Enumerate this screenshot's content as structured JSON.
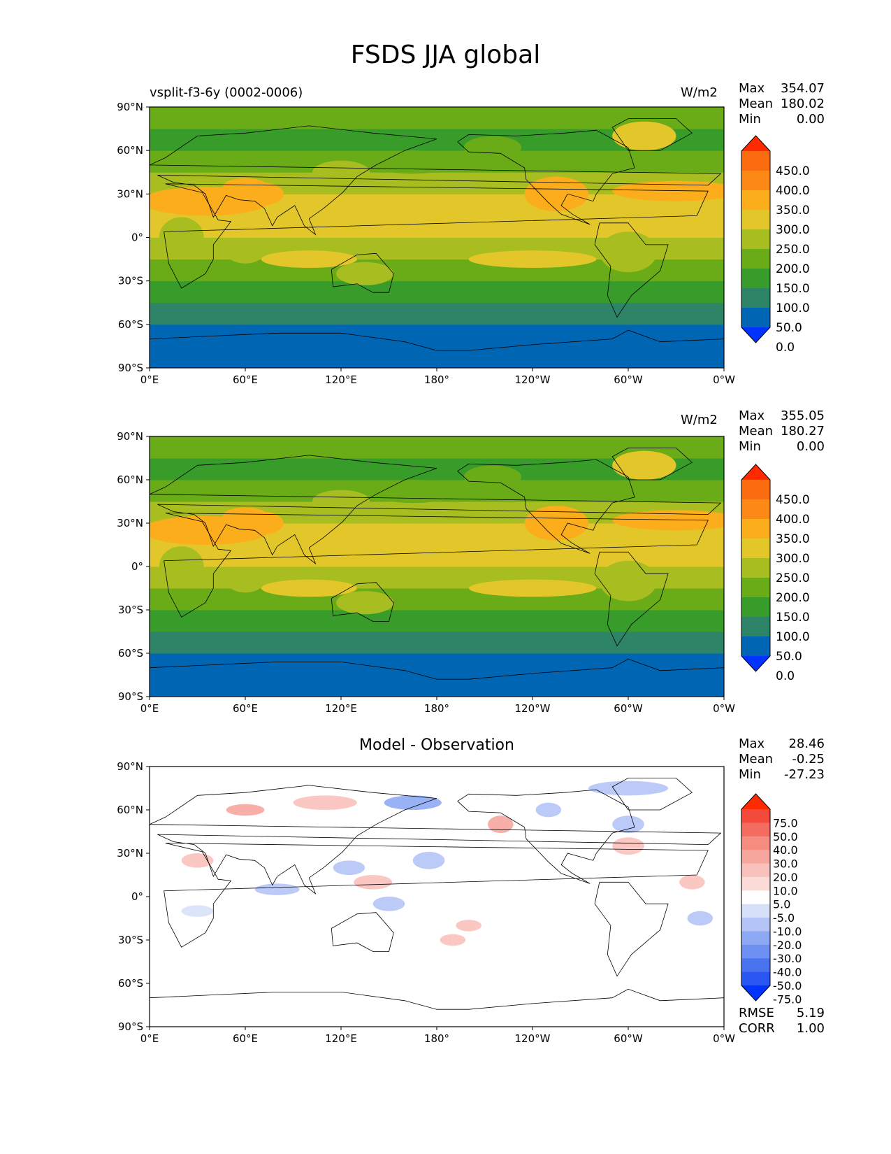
{
  "figure_title": "FSDS JJA global",
  "colors": {
    "levels_fill": [
      "#0033ff",
      "#0066b3",
      "#2e8466",
      "#389c2a",
      "#6aac18",
      "#a8bd20",
      "#e3c72a",
      "#fbad1b",
      "#fc8815",
      "#fb6b10",
      "#ff2a00"
    ],
    "diff_fill": [
      "#0033ff",
      "#2a57f2",
      "#4a74ef",
      "#6d90f2",
      "#8ea9f4",
      "#b4c4f6",
      "#d8e1fa",
      "#ffffff",
      "#fbdcd8",
      "#f9c1bb",
      "#f7a69e",
      "#f68b80",
      "#f46c5f",
      "#f34a3b",
      "#ff2a00"
    ]
  },
  "chart_data": [
    {
      "type": "heatmap",
      "subtitle_left": "vsplit-f3-6y (0002-0006)",
      "units": "W/m2",
      "stats": {
        "max_label": "Max",
        "max": "354.07",
        "mean_label": "Mean",
        "mean": "180.02",
        "min_label": "Min",
        "min": "0.00"
      },
      "colorbar_levels": [
        "450.0",
        "400.0",
        "350.0",
        "300.0",
        "250.0",
        "200.0",
        "150.0",
        "100.0",
        "50.0",
        "0.0"
      ],
      "x_ticks": [
        "0°E",
        "60°E",
        "120°E",
        "180°",
        "120°W",
        "60°W",
        "0°W"
      ],
      "y_ticks": [
        "90°N",
        "60°N",
        "30°N",
        "0°",
        "30°S",
        "60°S",
        "90°S"
      ],
      "xlim": [
        0,
        360
      ],
      "ylim": [
        -90,
        90
      ],
      "zonal_band_values": [
        0,
        25,
        75,
        125,
        175,
        225,
        275,
        275,
        225,
        175,
        125,
        175
      ]
    },
    {
      "type": "heatmap",
      "subtitle_left": "",
      "units": "W/m2",
      "stats": {
        "max_label": "Max",
        "max": "355.05",
        "mean_label": "Mean",
        "mean": "180.27",
        "min_label": "Min",
        "min": "0.00"
      },
      "colorbar_levels": [
        "450.0",
        "400.0",
        "350.0",
        "300.0",
        "250.0",
        "200.0",
        "150.0",
        "100.0",
        "50.0",
        "0.0"
      ],
      "x_ticks": [
        "0°E",
        "60°E",
        "120°E",
        "180°",
        "120°W",
        "60°W",
        "0°W"
      ],
      "y_ticks": [
        "90°N",
        "60°N",
        "30°N",
        "0°",
        "30°S",
        "60°S",
        "90°S"
      ],
      "xlim": [
        0,
        360
      ],
      "ylim": [
        -90,
        90
      ],
      "zonal_band_values": [
        0,
        25,
        75,
        125,
        175,
        225,
        275,
        275,
        225,
        175,
        125,
        175
      ]
    },
    {
      "type": "heatmap",
      "title": "Model - Observation",
      "stats": {
        "max_label": "Max",
        "max": "28.46",
        "mean_label": "Mean",
        "mean": "-0.25",
        "min_label": "Min",
        "min": "-27.23"
      },
      "colorbar_levels": [
        "75.0",
        "50.0",
        "40.0",
        "30.0",
        "20.0",
        "10.0",
        "5.0",
        "-5.0",
        "-10.0",
        "-20.0",
        "-30.0",
        "-40.0",
        "-50.0",
        "-75.0"
      ],
      "x_ticks": [
        "0°E",
        "60°E",
        "120°E",
        "180°",
        "120°W",
        "60°W",
        "0°W"
      ],
      "y_ticks": [
        "90°N",
        "60°N",
        "30°N",
        "0°",
        "30°S",
        "60°S",
        "90°S"
      ],
      "xlim": [
        0,
        360
      ],
      "ylim": [
        -90,
        90
      ],
      "metrics": {
        "rmse_label": "RMSE",
        "rmse": "5.19",
        "corr_label": "CORR",
        "corr": "1.00"
      }
    }
  ]
}
